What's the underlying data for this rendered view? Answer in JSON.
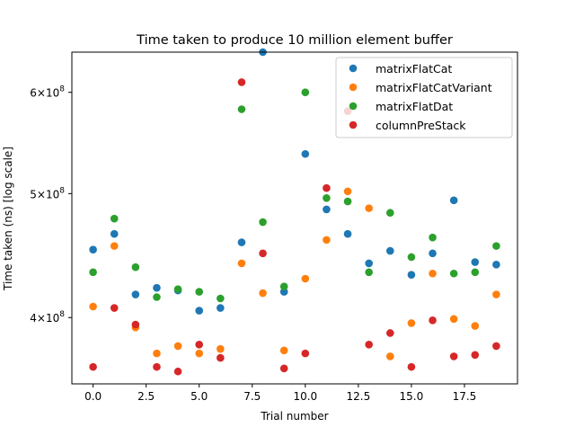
{
  "chart_data": {
    "type": "scatter",
    "title": "Time taken to produce 10 million element buffer",
    "xlabel": "Trial number",
    "ylabel": "Time taken (ns) [log scale]",
    "yscale": "log",
    "xlim": [
      -1.0,
      20.0
    ],
    "ylim": [
      355000000,
      645000000
    ],
    "grid": false,
    "legend_position": "top-right",
    "x_ticks": [
      {
        "value": 0,
        "label": "0.0"
      },
      {
        "value": 2.5,
        "label": "2.5"
      },
      {
        "value": 5,
        "label": "5.0"
      },
      {
        "value": 7.5,
        "label": "7.5"
      },
      {
        "value": 10,
        "label": "10.0"
      },
      {
        "value": 12.5,
        "label": "12.5"
      },
      {
        "value": 15,
        "label": "15.0"
      },
      {
        "value": 17.5,
        "label": "17.5"
      }
    ],
    "y_ticks": [
      {
        "value": 400000000,
        "base": "4",
        "exp": "8"
      },
      {
        "value": 500000000,
        "base": "5",
        "exp": "8"
      },
      {
        "value": 600000000,
        "base": "6",
        "exp": "8"
      }
    ],
    "series": [
      {
        "name": "matrixFlatCat",
        "color": "#1f77b4",
        "x": [
          0,
          1,
          2,
          3,
          4,
          5,
          6,
          7,
          8,
          9,
          10,
          11,
          12,
          13,
          14,
          15,
          16,
          17,
          18,
          19
        ],
        "y": [
          452000000,
          465000000,
          417000000,
          422000000,
          420000000,
          405000000,
          407000000,
          458000000,
          645000000,
          419000000,
          537000000,
          486000000,
          465000000,
          441000000,
          451000000,
          432000000,
          449000000,
          494000000,
          442000000,
          440000000
        ]
      },
      {
        "name": "matrixFlatCatVariant",
        "color": "#ff7f0e",
        "x": [
          0,
          1,
          2,
          3,
          4,
          5,
          6,
          7,
          8,
          9,
          10,
          11,
          12,
          13,
          14,
          15,
          16,
          17,
          18,
          19
        ],
        "y": [
          408000000,
          455000000,
          393000000,
          375000000,
          380000000,
          375000000,
          378000000,
          441000000,
          418000000,
          377000000,
          429000000,
          460000000,
          502000000,
          487000000,
          373000000,
          396000000,
          433000000,
          399000000,
          394000000,
          417000000
        ]
      },
      {
        "name": "matrixFlatDat",
        "color": "#2ca02c",
        "x": [
          0,
          1,
          2,
          3,
          4,
          5,
          6,
          7,
          8,
          9,
          10,
          11,
          12,
          13,
          14,
          15,
          16,
          17,
          18,
          19
        ],
        "y": [
          434000000,
          478000000,
          438000000,
          415000000,
          421000000,
          419000000,
          414000000,
          582000000,
          475000000,
          423000000,
          600000000,
          496000000,
          493000000,
          434000000,
          483000000,
          446000000,
          462000000,
          433000000,
          434000000,
          455000000
        ]
      },
      {
        "name": "columnPreStack",
        "color": "#d62728",
        "x": [
          0,
          1,
          2,
          3,
          4,
          5,
          6,
          7,
          8,
          9,
          10,
          11,
          12,
          13,
          14,
          15,
          16,
          17,
          18,
          19
        ],
        "y": [
          366000000,
          407000000,
          395000000,
          366000000,
          363000000,
          381000000,
          372000000,
          611000000,
          449000000,
          365000000,
          375000000,
          505000000,
          580000000,
          381000000,
          389000000,
          366000000,
          398000000,
          373000000,
          374000000,
          380000000
        ]
      }
    ]
  }
}
